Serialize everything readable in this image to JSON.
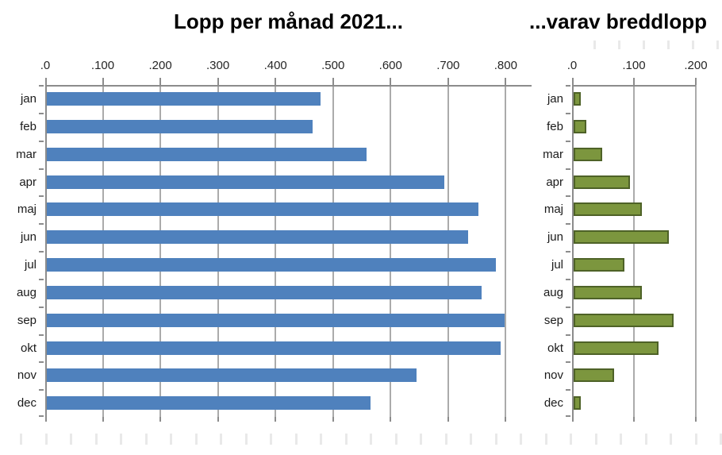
{
  "chart_data": [
    {
      "type": "bar",
      "orientation": "horizontal",
      "title": "Lopp per månad 2021...",
      "categories": [
        "jan",
        "feb",
        "mar",
        "apr",
        "maj",
        "jun",
        "jul",
        "aug",
        "sep",
        "okt",
        "nov",
        "dec"
      ],
      "values": [
        475,
        462,
        556,
        691,
        750,
        732,
        780,
        756,
        796,
        789,
        642,
        563
      ],
      "xlabel": "",
      "ylabel": "",
      "axis": {
        "position": "top",
        "tick_labels": [
          ".0",
          ".100",
          ".200",
          ".300",
          ".400",
          ".500",
          ".600",
          ".700",
          ".800"
        ],
        "tick_values": [
          0,
          100,
          200,
          300,
          400,
          500,
          600,
          700,
          800
        ],
        "xlim": [
          0,
          845
        ],
        "grid": true
      },
      "legend": "none",
      "bar_color": "#4F81BD",
      "bar_border_color": "#4F81BD"
    },
    {
      "type": "bar",
      "orientation": "horizontal",
      "title": "...varav breddlopp",
      "categories": [
        "jan",
        "feb",
        "mar",
        "apr",
        "maj",
        "jun",
        "jul",
        "aug",
        "sep",
        "okt",
        "nov",
        "dec"
      ],
      "values": [
        12,
        20,
        46,
        91,
        110,
        154,
        82,
        110,
        162,
        137,
        66,
        12
      ],
      "xlabel": "",
      "ylabel": "",
      "axis": {
        "position": "top",
        "tick_labels": [
          ".0",
          ".100",
          ".200"
        ],
        "tick_values": [
          0,
          100,
          200
        ],
        "xlim": [
          0,
          200
        ],
        "grid": true
      },
      "legend": "none",
      "bar_color": "#7C963E",
      "bar_border_color": "#4E6227"
    }
  ],
  "colors": {
    "gridline": "#ABABAB",
    "axis_line": "#8C8C8C",
    "tick_text": "#262626",
    "category_text": "#1a1a1a",
    "title_text": "#000000",
    "faint_tick": "#E9E9E9",
    "background": "#FFFFFF"
  }
}
